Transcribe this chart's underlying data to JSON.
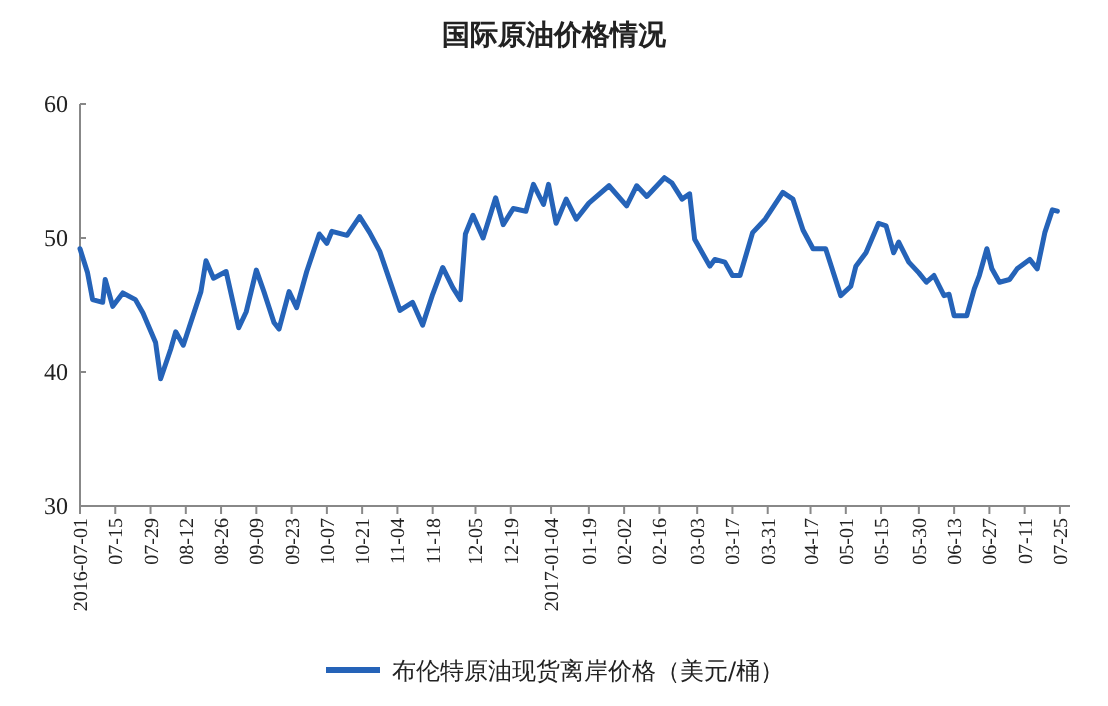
{
  "chart_data": {
    "type": "line",
    "title": "国际原油价格情况",
    "x": [
      "2016-07-01",
      "2016-07-04",
      "2016-07-06",
      "2016-07-10",
      "2016-07-11",
      "2016-07-14",
      "2016-07-18",
      "2016-07-23",
      "2016-07-26",
      "2016-07-31",
      "2016-08-02",
      "2016-08-06",
      "2016-08-08",
      "2016-08-11",
      "2016-08-18",
      "2016-08-20",
      "2016-08-23",
      "2016-08-28",
      "2016-09-02",
      "2016-09-05",
      "2016-09-09",
      "2016-09-12",
      "2016-09-16",
      "2016-09-18",
      "2016-09-22",
      "2016-09-25",
      "2016-09-29",
      "2016-10-04",
      "2016-10-07",
      "2016-10-09",
      "2016-10-15",
      "2016-10-20",
      "2016-10-24",
      "2016-10-28",
      "2016-11-01",
      "2016-11-05",
      "2016-11-10",
      "2016-11-14",
      "2016-11-18",
      "2016-11-22",
      "2016-11-26",
      "2016-11-29",
      "2016-12-01",
      "2016-12-04",
      "2016-12-08",
      "2016-12-13",
      "2016-12-16",
      "2016-12-20",
      "2016-12-25",
      "2016-12-28",
      "2017-01-01",
      "2017-01-03",
      "2017-01-06",
      "2017-01-10",
      "2017-01-14",
      "2017-01-19",
      "2017-01-27",
      "2017-02-03",
      "2017-02-07",
      "2017-02-11",
      "2017-02-18",
      "2017-02-21",
      "2017-02-25",
      "2017-02-28",
      "2017-03-02",
      "2017-03-08",
      "2017-03-10",
      "2017-03-14",
      "2017-03-17",
      "2017-03-20",
      "2017-03-25",
      "2017-03-30",
      "2017-04-06",
      "2017-04-10",
      "2017-04-14",
      "2017-04-18",
      "2017-04-23",
      "2017-04-29",
      "2017-05-03",
      "2017-05-05",
      "2017-05-09",
      "2017-05-14",
      "2017-05-17",
      "2017-05-20",
      "2017-05-22",
      "2017-05-26",
      "2017-05-30",
      "2017-06-02",
      "2017-06-05",
      "2017-06-09",
      "2017-06-11",
      "2017-06-13",
      "2017-06-18",
      "2017-06-21",
      "2017-06-23",
      "2017-06-26",
      "2017-06-28",
      "2017-07-01",
      "2017-07-05",
      "2017-07-08",
      "2017-07-13",
      "2017-07-16",
      "2017-07-19",
      "2017-07-22",
      "2017-07-24"
    ],
    "series": [
      {
        "name": "布伦特原油现货离岸价格（美元/桶）",
        "color": "#2563b8",
        "values": [
          49.2,
          47.4,
          45.4,
          45.2,
          46.9,
          44.9,
          45.9,
          45.4,
          44.4,
          42.2,
          39.5,
          41.7,
          43.0,
          42.0,
          46.0,
          48.3,
          47.0,
          47.5,
          43.3,
          44.5,
          47.6,
          46.0,
          43.7,
          43.2,
          46.0,
          44.8,
          47.5,
          50.3,
          49.6,
          50.5,
          50.2,
          51.6,
          50.4,
          49.0,
          46.8,
          44.6,
          45.2,
          43.5,
          45.8,
          47.8,
          46.3,
          45.4,
          50.3,
          51.7,
          50.0,
          53.0,
          51.0,
          52.2,
          52.0,
          54.0,
          52.5,
          54.0,
          51.1,
          52.9,
          51.4,
          52.6,
          53.9,
          52.4,
          53.9,
          53.1,
          54.5,
          54.1,
          52.9,
          53.3,
          49.9,
          47.9,
          48.4,
          48.2,
          47.2,
          47.2,
          50.4,
          51.4,
          53.4,
          52.9,
          50.6,
          49.2,
          49.2,
          45.7,
          46.4,
          47.9,
          48.9,
          51.1,
          50.9,
          48.9,
          49.7,
          48.2,
          47.4,
          46.7,
          47.2,
          45.7,
          45.8,
          44.2,
          44.2,
          46.2,
          47.2,
          49.2,
          47.7,
          46.7,
          46.9,
          47.7,
          48.4,
          47.7,
          50.4,
          52.1,
          52.0
        ]
      }
    ],
    "xlim": [
      "2016-07-01",
      "2017-07-29"
    ],
    "xticks": [
      {
        "value": "2016-07-01",
        "label": "2016-07-01"
      },
      {
        "value": "2016-07-15",
        "label": "07-15"
      },
      {
        "value": "2016-07-29",
        "label": "07-29"
      },
      {
        "value": "2016-08-12",
        "label": "08-12"
      },
      {
        "value": "2016-08-26",
        "label": "08-26"
      },
      {
        "value": "2016-09-09",
        "label": "09-09"
      },
      {
        "value": "2016-09-23",
        "label": "09-23"
      },
      {
        "value": "2016-10-07",
        "label": "10-07"
      },
      {
        "value": "2016-10-21",
        "label": "10-21"
      },
      {
        "value": "2016-11-04",
        "label": "11-04"
      },
      {
        "value": "2016-11-18",
        "label": "11-18"
      },
      {
        "value": "2016-12-05",
        "label": "12-05"
      },
      {
        "value": "2016-12-19",
        "label": "12-19"
      },
      {
        "value": "2017-01-04",
        "label": "2017-01-04"
      },
      {
        "value": "2017-01-19",
        "label": "01-19"
      },
      {
        "value": "2017-02-02",
        "label": "02-02"
      },
      {
        "value": "2017-02-16",
        "label": "02-16"
      },
      {
        "value": "2017-03-03",
        "label": "03-03"
      },
      {
        "value": "2017-03-17",
        "label": "03-17"
      },
      {
        "value": "2017-03-31",
        "label": "03-31"
      },
      {
        "value": "2017-04-17",
        "label": "04-17"
      },
      {
        "value": "2017-05-01",
        "label": "05-01"
      },
      {
        "value": "2017-05-15",
        "label": "05-15"
      },
      {
        "value": "2017-05-30",
        "label": "05-30"
      },
      {
        "value": "2017-06-13",
        "label": "06-13"
      },
      {
        "value": "2017-06-27",
        "label": "06-27"
      },
      {
        "value": "2017-07-11",
        "label": "07-11"
      },
      {
        "value": "2017-07-25",
        "label": "07-25"
      }
    ],
    "ylim": [
      30,
      60
    ],
    "yticks": [
      30,
      40,
      50,
      60
    ],
    "legend": "bottom",
    "grid": false,
    "marker": "none",
    "line_style": "solid"
  }
}
